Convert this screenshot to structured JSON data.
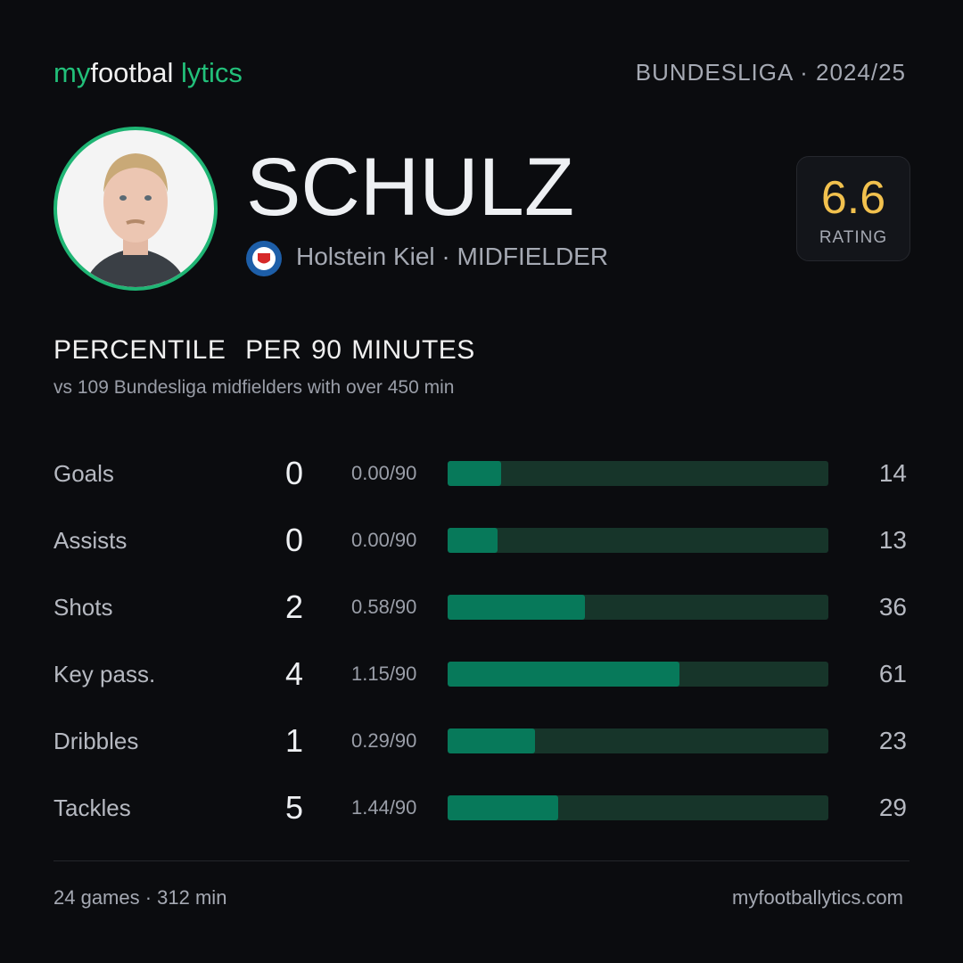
{
  "header": {
    "brand": [
      "my",
      "footbal",
      "lytics"
    ],
    "league": "BUNDESLIGA · 2024/25"
  },
  "player": {
    "name": "SCHULZ",
    "subtitle": "Holstein Kiel · MIDFIELDER"
  },
  "rating": {
    "value": 6.6,
    "label": "RATING"
  },
  "section": {
    "title": [
      "PERCENTILE",
      "PER 90 MINUTES"
    ],
    "subtitle": [
      "vs 109 Bundesliga midfielders",
      "with over 450 min"
    ]
  },
  "stats": [
    {
      "label": "Goals",
      "total": 0,
      "per90": "0.00/90",
      "percentile": 14
    },
    {
      "label": "Assists",
      "total": 0,
      "per90": "0.00/90",
      "percentile": 13
    },
    {
      "label": "Shots",
      "total": 2,
      "per90": "0.58/90",
      "percentile": 36
    },
    {
      "label": "Key pass.",
      "total": 4,
      "per90": "1.15/90",
      "percentile": 61
    },
    {
      "label": "Dribbles",
      "total": 1,
      "per90": "0.29/90",
      "percentile": 23
    },
    {
      "label": "Tackles",
      "total": 5,
      "per90": "1.44/90",
      "percentile": 29
    }
  ],
  "footer": {
    "summary": "24 games · 312 min",
    "site": "myfootballytics.com"
  }
}
